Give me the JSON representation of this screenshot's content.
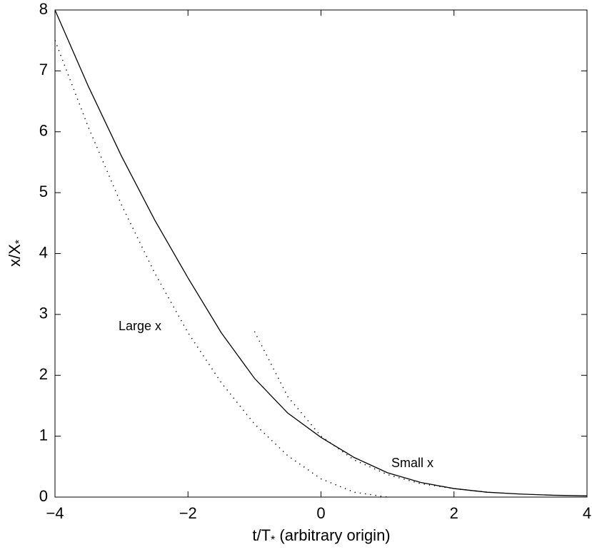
{
  "chart_data": {
    "type": "line",
    "xlabel": [
      "t/T",
      "*",
      " (arbitrary origin)"
    ],
    "ylabel": [
      "x/X",
      "*"
    ],
    "xlim": [
      -4,
      4
    ],
    "ylim": [
      0,
      8
    ],
    "xticks": [
      {
        "value": -4,
        "label": "−4"
      },
      {
        "value": -2,
        "label": "−2"
      },
      0,
      2,
      4
    ],
    "yticks": [
      0,
      1,
      2,
      3,
      4,
      5,
      6,
      7,
      8
    ],
    "annotations": [
      "Large x",
      "Small x"
    ],
    "series": [
      {
        "color": "#000000",
        "linestyle": "solid",
        "x": [
          -4,
          -3.5,
          -3,
          -2.5,
          -2,
          -1.5,
          -1,
          -0.5,
          0,
          0.5,
          1,
          1.5,
          2,
          2.5,
          3,
          3.5,
          4
        ],
        "values": [
          8,
          6.75,
          5.6,
          4.55,
          3.6,
          2.7,
          1.95,
          1.38,
          0.98,
          0.65,
          0.4,
          0.24,
          0.14,
          0.08,
          0.05,
          0.03,
          0.02
        ]
      },
      {
        "color": "#000000",
        "linestyle": "dotted",
        "x": [
          -4,
          -3.5,
          -3,
          -2.5,
          -2,
          -1.5,
          -1,
          -0.5,
          0,
          0.5,
          1
        ],
        "values": [
          7.5,
          6.08,
          4.8,
          3.68,
          2.7,
          1.88,
          1.2,
          0.68,
          0.3,
          0.08,
          0
        ]
      },
      {
        "color": "#000000",
        "linestyle": "dotted",
        "x": [
          -1,
          -0.5,
          0,
          0.5,
          1,
          1.5,
          2,
          2.5
        ],
        "values": [
          2.72,
          1.65,
          1.0,
          0.61,
          0.37,
          0.22,
          0.14,
          0.08
        ]
      }
    ]
  }
}
